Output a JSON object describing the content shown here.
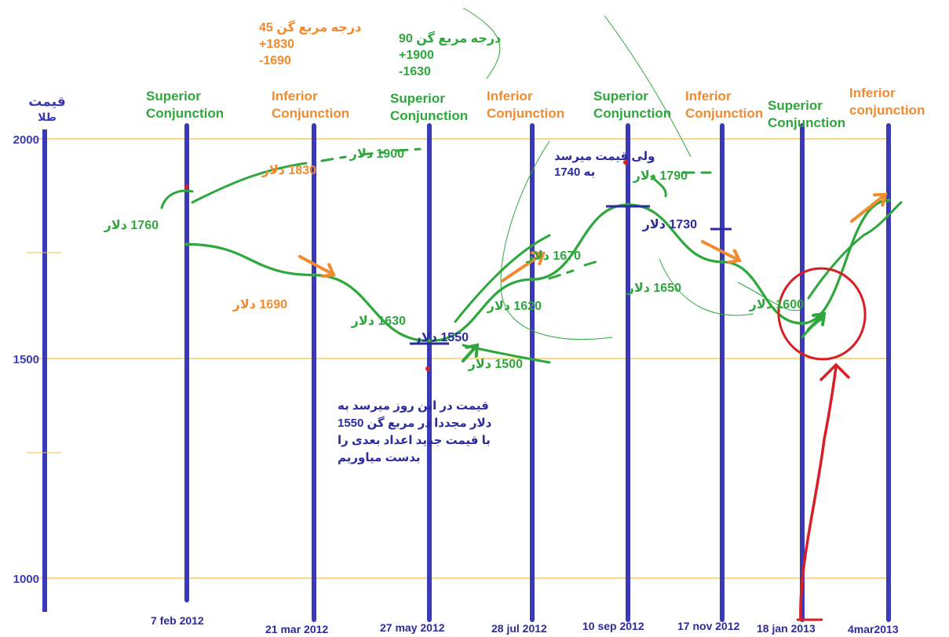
{
  "colors": {
    "axis_blue": "#3a3ab8",
    "grid_gold": "#f0c040",
    "green": "#2ea73c",
    "orange": "#f28a2e",
    "red": "#d81f26",
    "dark_blue": "#2b2b9e"
  },
  "chart_data": {
    "type": "line",
    "title": "",
    "ylabel": "قیمت طلا",
    "ylabel_parts": [
      "قیمت",
      "طلا"
    ],
    "y_ticks": [
      "2000",
      "1500",
      "1000"
    ],
    "ylim": [
      900,
      2050
    ],
    "grid": true,
    "events": [
      {
        "date": "7 feb 2012",
        "label_lines": [
          "Superior",
          "Conjunction"
        ],
        "kind": "superior"
      },
      {
        "date": "21 mar 2012",
        "label_lines": [
          "Inferior",
          "Conjunction"
        ],
        "kind": "inferior"
      },
      {
        "date": "27 may 2012",
        "label_lines": [
          "Superior",
          "Conjunction"
        ],
        "kind": "superior"
      },
      {
        "date": "28 jul 2012",
        "label_lines": [
          "Inferior",
          "Conjunction"
        ],
        "kind": "inferior"
      },
      {
        "date": "10 sep 2012",
        "label_lines": [
          "Superior",
          "Conjunction"
        ],
        "kind": "superior"
      },
      {
        "date": "17 nov 2012",
        "label_lines": [
          "Inferior",
          "Conjunction"
        ],
        "kind": "inferior"
      },
      {
        "date": "18 jan 2013",
        "label_lines": [
          "Superior",
          "Conjunction"
        ],
        "kind": "superior"
      },
      {
        "date": "4mar2013",
        "label_lines": [
          "Inferior",
          "conjunction"
        ],
        "kind": "inferior"
      }
    ],
    "series": [
      {
        "x": [
          "7 feb 2012",
          "21 mar 2012",
          "27 may 2012",
          "28 jul 2012",
          "10 sep 2012",
          "17 nov 2012",
          "18 jan 2013",
          "4mar2013"
        ],
        "y": [
          1760,
          1690,
          1540,
          1680,
          1850,
          1720,
          1580,
          1860
        ]
      }
    ],
    "price_labels": [
      {
        "text": "1760 دلار",
        "value": 1760,
        "color": "green"
      },
      {
        "text": "1830 دلار",
        "value": 1830,
        "color": "orange"
      },
      {
        "text": "1900 دلار",
        "value": 1900,
        "color": "green"
      },
      {
        "text": "1690 دلار",
        "value": 1690,
        "color": "orange"
      },
      {
        "text": "1630 دلار",
        "value": 1630,
        "color": "green"
      },
      {
        "text": "1550 دلار",
        "value": 1550,
        "color": "dark_blue"
      },
      {
        "text": "1500 دلار",
        "value": 1500,
        "color": "green"
      },
      {
        "text": "1620 دلار",
        "value": 1620,
        "color": "green"
      },
      {
        "text": "1670 دلار",
        "value": 1670,
        "color": "green"
      },
      {
        "text": "1790 دلار",
        "value": 1790,
        "color": "green"
      },
      {
        "text": "1730 دلار",
        "value": 1730,
        "color": "dark_blue"
      },
      {
        "text": "1650 دلار",
        "value": 1650,
        "color": "green"
      },
      {
        "text": "1600 دلار",
        "value": 1600,
        "color": "green"
      }
    ],
    "annotations": [
      {
        "lines": [
          "45 درجه مربع گن",
          "+1830",
          "-1690"
        ],
        "color": "orange"
      },
      {
        "lines": [
          "90 درجه مربع گن",
          "+1900",
          "-1630"
        ],
        "color": "green"
      },
      {
        "lines": [
          "ولی قیمت میرسد",
          "به 1740"
        ],
        "color": "dark_blue"
      },
      {
        "lines": [
          "قیمت در این روز میرسد به",
          "1550 دلار مجددا در مربع گن",
          "با قیمت جدید اعداد بعدی را",
          "بدست میاوریم"
        ],
        "color": "dark_blue"
      }
    ]
  }
}
